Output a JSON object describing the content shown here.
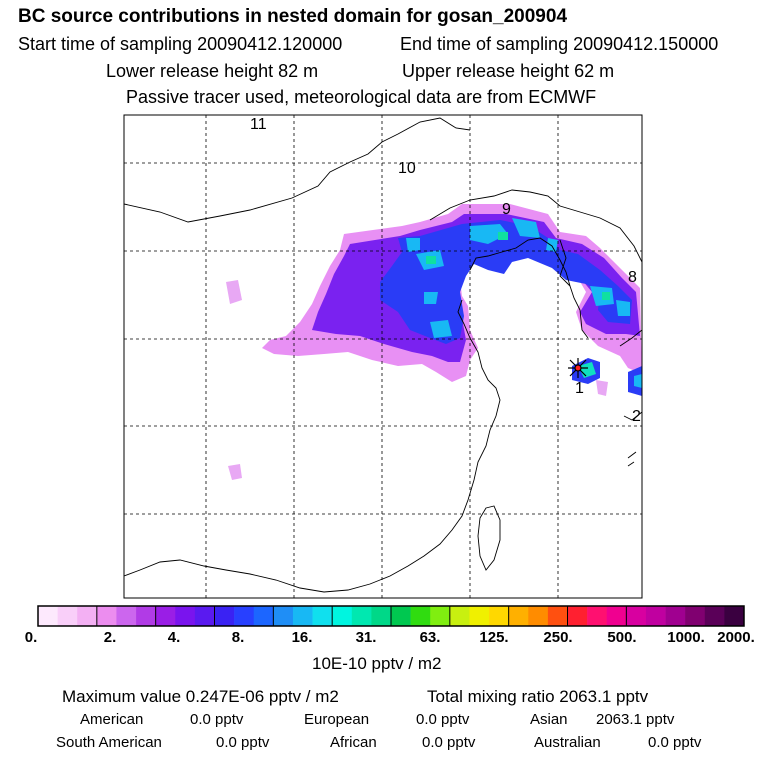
{
  "header": {
    "title": "BC  source contributions in nested domain for gosan_200904",
    "start_time": "Start time of sampling 20090412.120000",
    "end_time": "End time of sampling 20090412.150000",
    "lower_release": "Lower release height   82 m",
    "upper_release": "Upper release height   62 m",
    "tracer_note": "Passive tracer used, meteorological data are from ECMWF"
  },
  "map": {
    "track_labels": [
      "11",
      "10",
      "9",
      "8",
      "1",
      "2"
    ],
    "receptor_marker": "receptor-star"
  },
  "colorbar": {
    "colors": [
      "#fde9fd",
      "#f9cff9",
      "#f3b0f3",
      "#ec8def",
      "#cc66ee",
      "#b13be6",
      "#9a1ee6",
      "#7a14ee",
      "#5a1af0",
      "#3a22f3",
      "#2840ff",
      "#1c66ff",
      "#1f8ef6",
      "#18b8f4",
      "#10e0ee",
      "#00f5e0",
      "#00e8b0",
      "#00d888",
      "#00c850",
      "#30dc10",
      "#80ee10",
      "#c8f010",
      "#f0f000",
      "#ffd800",
      "#ffb000",
      "#ff8c00",
      "#ff5010",
      "#ff2030",
      "#ff1070",
      "#f00090",
      "#d800a0",
      "#c000a0",
      "#a00090",
      "#800070",
      "#5a0058",
      "#3a0040"
    ],
    "tick_labels": [
      "0.",
      "2.",
      "4.",
      "8.",
      "16.",
      "31.",
      "63.",
      "125.",
      "250.",
      "500.",
      "1000.",
      "2000."
    ],
    "units": "10E-10 pptv / m2"
  },
  "summary": {
    "max_value": "Maximum value  0.247E-06 pptv / m2",
    "total_mixing": "Total mixing ratio     2063.1 pptv",
    "american_label": "American",
    "american_value": "0.0 pptv",
    "european_label": "European",
    "european_value": "0.0 pptv",
    "asian_label": "Asian",
    "asian_value": "2063.1 pptv",
    "south_american_label": "South American",
    "south_american_value": "0.0 pptv",
    "african_label": "African",
    "african_value": "0.0 pptv",
    "australian_label": "Australian",
    "australian_value": "0.0 pptv"
  }
}
